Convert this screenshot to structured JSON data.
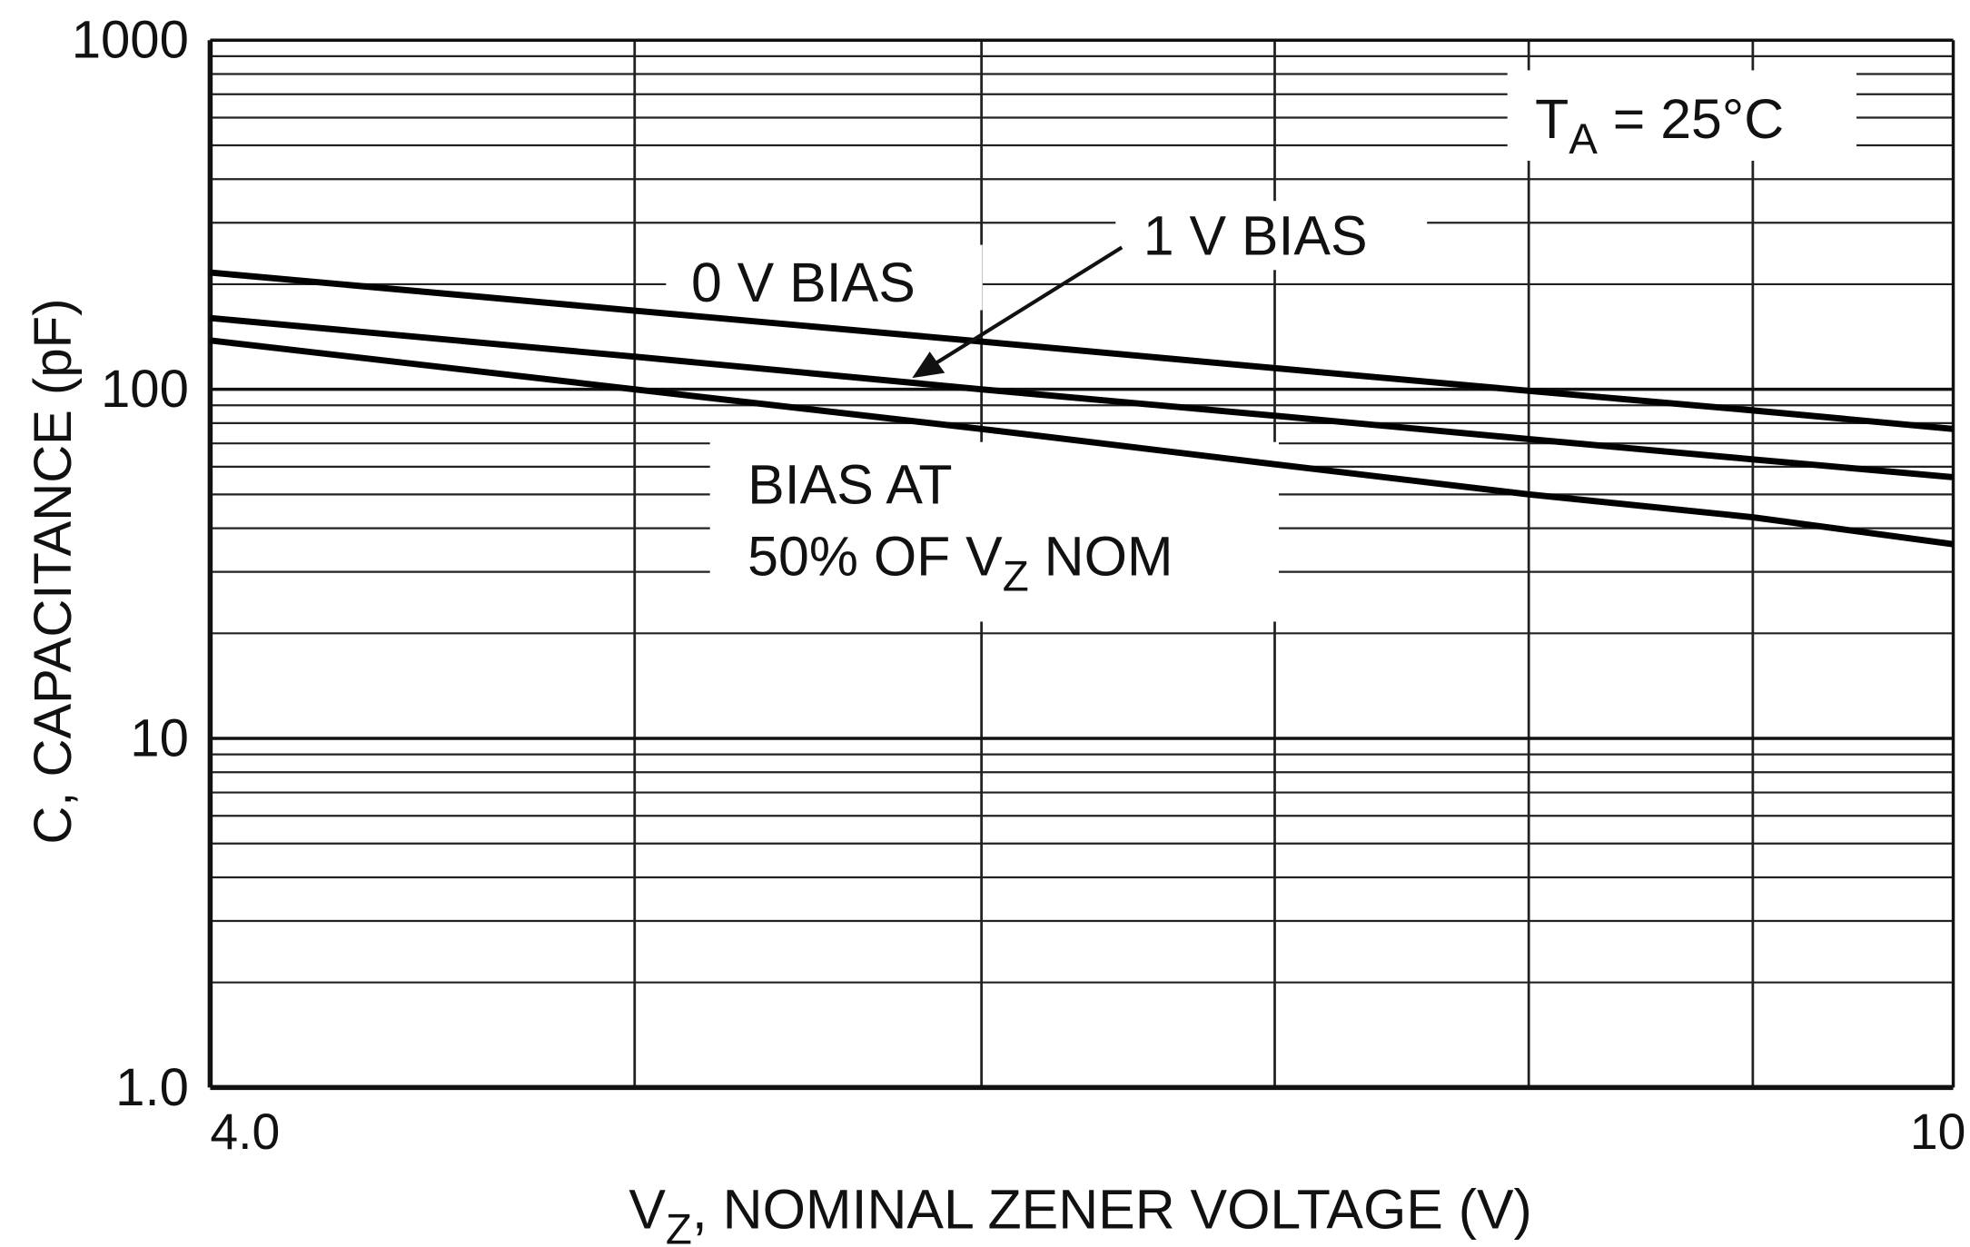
{
  "chart_data": {
    "type": "line",
    "x": [
      4,
      5,
      6,
      7,
      8,
      9,
      10
    ],
    "series": [
      {
        "color": "#000000",
        "values": [
          216,
          168,
          137,
          115,
          99,
          87,
          77
        ]
      },
      {
        "color": "#000000",
        "values": [
          160,
          124,
          100,
          84,
          72,
          63,
          56
        ]
      },
      {
        "color": "#000000",
        "values": [
          138,
          100,
          77,
          61,
          50,
          43,
          36
        ]
      }
    ],
    "xlim": [
      4,
      10
    ],
    "ylim": [
      1,
      1000
    ],
    "log_x": true,
    "log_y": true,
    "grid": true,
    "xticks": [
      {
        "value": 4,
        "label": "4.0"
      },
      10
    ],
    "yticks": [
      {
        "value": 1,
        "label": "1.0"
      },
      10,
      100,
      1000
    ],
    "xminor": [
      5,
      6,
      7,
      8,
      9
    ],
    "yminor": [
      2,
      3,
      4,
      5,
      6,
      7,
      8,
      9,
      20,
      30,
      40,
      50,
      60,
      70,
      80,
      90,
      200,
      300,
      400,
      500,
      600,
      700,
      800,
      900
    ],
    "xlabel": [
      "V",
      "Z",
      ", NOMINAL ZENER VOLTAGE (V)"
    ],
    "ylabel": "C, CAPACITANCE (pF)",
    "annotations": [
      [
        "0 V BIAS"
      ],
      [
        "1 V BIAS"
      ],
      [
        "BIAS AT"
      ],
      [
        "50% OF V",
        "Z",
        " NOM"
      ],
      [
        "T",
        "A",
        " = 25°C"
      ]
    ]
  }
}
